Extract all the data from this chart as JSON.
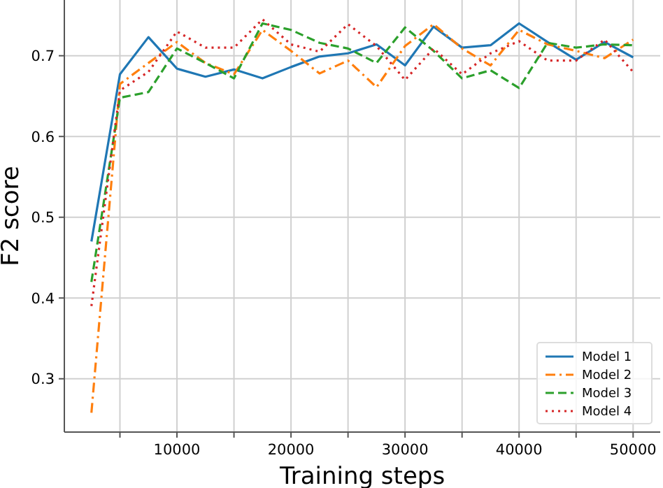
{
  "chart_data": {
    "type": "line",
    "xlabel": "Training steps",
    "ylabel": "F2 score",
    "x": [
      2500,
      5000,
      7500,
      10000,
      12500,
      15000,
      17500,
      20000,
      22500,
      25000,
      27500,
      30000,
      32500,
      35000,
      37500,
      40000,
      42500,
      45000,
      47500,
      50000
    ],
    "series": [
      {
        "name": "Model 1",
        "color": "#1f77b4",
        "line_style": "solid",
        "values": [
          0.47,
          0.677,
          0.723,
          0.684,
          0.674,
          0.683,
          0.672,
          0.686,
          0.699,
          0.703,
          0.714,
          0.688,
          0.736,
          0.71,
          0.713,
          0.74,
          0.717,
          0.695,
          0.717,
          0.698
        ]
      },
      {
        "name": "Model 2",
        "color": "#ff7f0e",
        "line_style": "dashdot",
        "values": [
          0.258,
          0.665,
          0.691,
          0.717,
          0.691,
          0.677,
          0.732,
          0.706,
          0.678,
          0.694,
          0.661,
          0.712,
          0.739,
          0.709,
          0.688,
          0.732,
          0.714,
          0.706,
          0.697,
          0.72
        ]
      },
      {
        "name": "Model 3",
        "color": "#2ca02c",
        "line_style": "dashed",
        "values": [
          0.42,
          0.648,
          0.655,
          0.709,
          0.691,
          0.672,
          0.74,
          0.732,
          0.716,
          0.709,
          0.691,
          0.735,
          0.706,
          0.672,
          0.682,
          0.66,
          0.716,
          0.71,
          0.714,
          0.713
        ]
      },
      {
        "name": "Model 4",
        "color": "#d62728",
        "line_style": "dotted",
        "values": [
          0.39,
          0.657,
          0.68,
          0.73,
          0.71,
          0.71,
          0.745,
          0.714,
          0.705,
          0.739,
          0.712,
          0.67,
          0.709,
          0.677,
          0.703,
          0.718,
          0.694,
          0.694,
          0.72,
          0.68
        ]
      }
    ],
    "xlim": [
      125,
      52375
    ],
    "ylim": [
      0.234,
      0.769
    ],
    "xticks": [
      {
        "value": 5000,
        "label": null
      },
      10000,
      {
        "value": 15000,
        "label": null
      },
      20000,
      {
        "value": 25000,
        "label": null
      },
      30000,
      {
        "value": 35000,
        "label": null
      },
      40000,
      {
        "value": 45000,
        "label": null
      },
      50000
    ],
    "yticks": [
      0.3,
      0.4,
      0.5,
      0.6,
      0.7
    ],
    "grid": true,
    "legend": "bottom right",
    "marker": "none"
  }
}
